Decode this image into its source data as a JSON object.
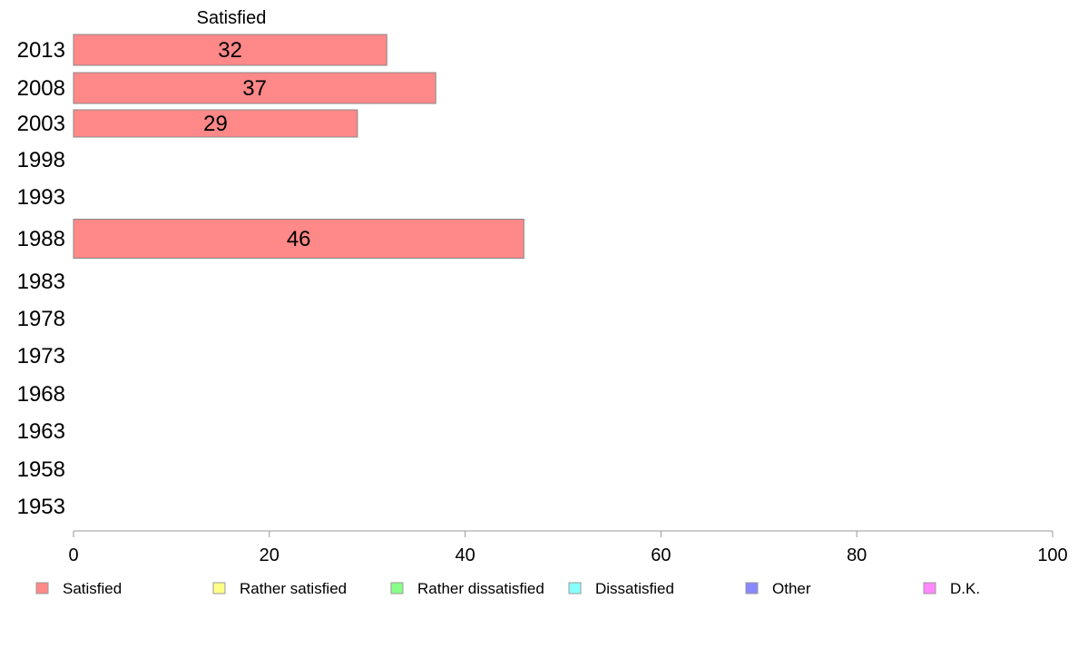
{
  "chart_data": {
    "type": "bar",
    "orientation": "horizontal",
    "series_header": "Satisfied",
    "categories": [
      "2013",
      "2008",
      "2003",
      "1998",
      "1993",
      "1988",
      "1983",
      "1978",
      "1973",
      "1968",
      "1963",
      "1958",
      "1953"
    ],
    "series": [
      {
        "name": "Satisfied",
        "color": "#ff8888",
        "values": [
          32,
          37,
          29,
          null,
          null,
          46,
          null,
          null,
          null,
          null,
          null,
          null,
          null
        ]
      }
    ],
    "xlim": [
      0,
      100
    ],
    "xticks": [
      "0",
      "20",
      "40",
      "60",
      "80",
      "100"
    ],
    "grid": false,
    "legend": [
      {
        "label": "Satisfied",
        "color": "#ff8888"
      },
      {
        "label": "Rather satisfied",
        "color": "#ffff88"
      },
      {
        "label": "Rather dissatisfied",
        "color": "#88ff88"
      },
      {
        "label": "Dissatisfied",
        "color": "#88ffff"
      },
      {
        "label": "Other",
        "color": "#8888ff"
      },
      {
        "label": "D.K.",
        "color": "#ff88ff"
      }
    ],
    "legend_position": "bottom"
  }
}
